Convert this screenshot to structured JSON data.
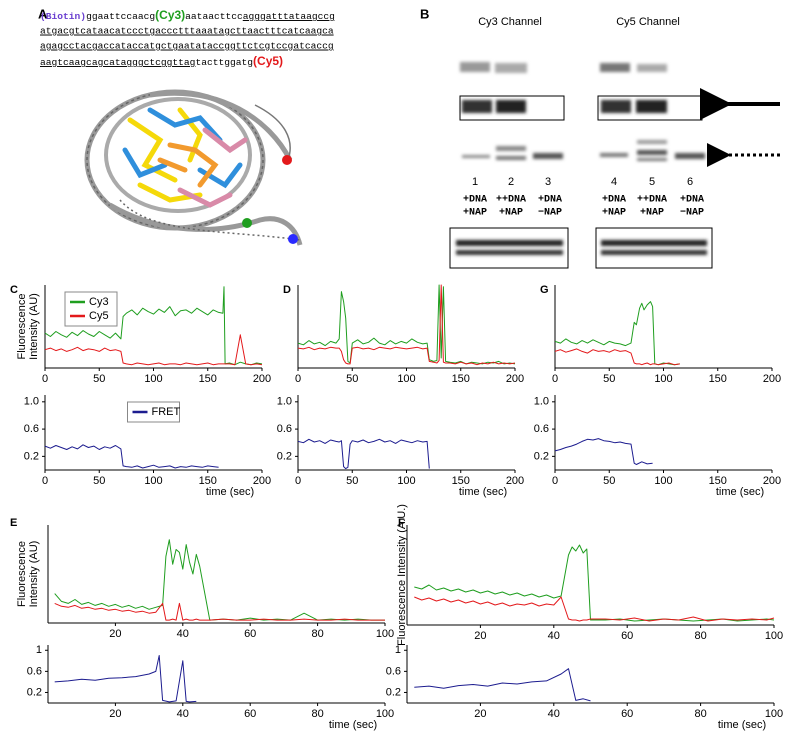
{
  "labels": [
    "A",
    "B"
  ],
  "sequence": {
    "lines": [
      [
        "(Biotin)",
        "ggaattccaacg",
        "(Cy3)",
        "aataacttcc",
        "agggatttataagccg"
      ],
      [
        "atgacgtcataacatccctgaccctttaaatagcttaactttcatcaagca"
      ],
      [
        "agagcctacgaccataccatgctgaatataccggttctcgtccgatcaccg"
      ],
      [
        "aagtcaagcagcatagggctcggttag",
        "tacttggatg",
        "(Cy5)"
      ]
    ]
  },
  "gel": {
    "channels": [
      "Cy3 Channel",
      "Cy5 Channel"
    ],
    "lanes": [
      {
        "number": 1,
        "conditions": [
          "+DNA",
          "+NAP"
        ]
      },
      {
        "number": 2,
        "conditions": [
          "++DNA",
          "+NAP"
        ]
      },
      {
        "number": 3,
        "conditions": [
          "+DNA",
          "−NAP"
        ]
      },
      {
        "number": 4,
        "conditions": [
          "+DNA",
          "+NAP"
        ]
      },
      {
        "number": 5,
        "conditions": [
          "++DNA",
          "+NAP"
        ]
      },
      {
        "number": 6,
        "conditions": [
          "+DNA",
          "−NAP"
        ]
      }
    ]
  },
  "chart_data": [
    {
      "type": "line",
      "label": "C",
      "ylabel_lines": [
        "Fluorescence",
        "Intensity (AU)"
      ],
      "legend": "upper left",
      "x": [
        0,
        5,
        10,
        15,
        20,
        25,
        30,
        35,
        40,
        45,
        50,
        55,
        60,
        65,
        70,
        72,
        75,
        80,
        85,
        90,
        95,
        100,
        105,
        110,
        115,
        120,
        125,
        130,
        135,
        140,
        145,
        150,
        155,
        160,
        164,
        165,
        166,
        170,
        175,
        180,
        185,
        190,
        195,
        200
      ],
      "xlim": [
        0,
        200
      ],
      "xticks": [
        0,
        50,
        100,
        150,
        200
      ],
      "ylim": [
        0,
        100
      ],
      "series": [
        {
          "name": "Cy3",
          "color": "#1f9e1f",
          "values": [
            42,
            38,
            44,
            40,
            37,
            43,
            39,
            45,
            41,
            38,
            44,
            40,
            36,
            42,
            35,
            62,
            66,
            70,
            64,
            72,
            68,
            65,
            71,
            67,
            74,
            63,
            69,
            70,
            66,
            72,
            68,
            64,
            70,
            67,
            66,
            98,
            5,
            6,
            4,
            7,
            5,
            4,
            6,
            5
          ]
        },
        {
          "name": "Cy5",
          "color": "#e3191b",
          "values": [
            22,
            24,
            21,
            23,
            20,
            22,
            25,
            21,
            23,
            22,
            20,
            24,
            21,
            22,
            20,
            6,
            5,
            4,
            6,
            5,
            4,
            5,
            6,
            4,
            5,
            5,
            4,
            6,
            5,
            4,
            5,
            6,
            4,
            5,
            5,
            5,
            5,
            5,
            4,
            40,
            5,
            4,
            5,
            4
          ]
        }
      ]
    },
    {
      "type": "line",
      "legend": "upper center",
      "xlabel": "time (sec)",
      "x": [
        0,
        5,
        10,
        15,
        20,
        25,
        30,
        35,
        40,
        45,
        50,
        55,
        60,
        65,
        70,
        72,
        75,
        80,
        85,
        90,
        95,
        100,
        105,
        110,
        115,
        120,
        125,
        130,
        135,
        140,
        145,
        150,
        155,
        160
      ],
      "xlim": [
        0,
        200
      ],
      "xticks": [
        0,
        50,
        100,
        150,
        200
      ],
      "ylim": [
        0,
        1.1
      ],
      "yticks": [
        0.2,
        0.6,
        {
          "value": 1,
          "label": "1.0"
        }
      ],
      "series": [
        {
          "name": "FRET",
          "color": "#1c1c8f",
          "values": [
            0.35,
            0.32,
            0.36,
            0.33,
            0.3,
            0.34,
            0.31,
            0.37,
            0.33,
            0.35,
            0.3,
            0.34,
            0.32,
            0.36,
            0.31,
            0.06,
            0.05,
            0.04,
            0.06,
            0.03,
            0.05,
            0.07,
            0.04,
            0.05,
            0.06,
            0.03,
            0.05,
            0.04,
            0.06,
            0.05,
            0.04,
            0.06,
            0.05,
            0.04
          ]
        }
      ]
    },
    {
      "type": "line",
      "label": "D",
      "x": [
        0,
        5,
        10,
        15,
        20,
        25,
        30,
        35,
        38,
        40,
        42,
        44,
        46,
        48,
        50,
        55,
        60,
        65,
        70,
        75,
        80,
        85,
        90,
        95,
        100,
        105,
        110,
        115,
        119,
        121,
        125,
        128,
        130,
        132,
        134,
        136,
        140,
        145,
        150,
        155,
        160,
        165,
        170,
        175,
        180,
        185,
        190,
        195,
        200
      ],
      "xlim": [
        0,
        200
      ],
      "xticks": [
        0,
        50,
        100,
        150,
        200
      ],
      "ylim": [
        0,
        100
      ],
      "series": [
        {
          "color": "#1f9e1f",
          "values": [
            30,
            28,
            33,
            29,
            31,
            27,
            32,
            30,
            35,
            92,
            80,
            60,
            8,
            6,
            30,
            34,
            29,
            31,
            36,
            30,
            28,
            33,
            29,
            32,
            30,
            35,
            31,
            29,
            30,
            10,
            8,
            9,
            100,
            12,
            98,
            8,
            7,
            6,
            8,
            5,
            7,
            6,
            5,
            7,
            6,
            8,
            5,
            6,
            5
          ]
        },
        {
          "color": "#e3191b",
          "values": [
            24,
            23,
            25,
            22,
            24,
            23,
            25,
            24,
            24,
            20,
            10,
            6,
            5,
            5,
            24,
            25,
            23,
            24,
            22,
            25,
            24,
            23,
            25,
            24,
            23,
            24,
            25,
            23,
            24,
            8,
            7,
            6,
            9,
            100,
            7,
            6,
            6,
            5,
            7,
            5,
            6,
            4,
            6,
            5,
            7,
            5,
            6,
            5,
            6
          ]
        }
      ]
    },
    {
      "type": "line",
      "xlabel": "time (sec)",
      "x": [
        0,
        5,
        10,
        15,
        20,
        25,
        30,
        35,
        38,
        40,
        42,
        44,
        46,
        48,
        50,
        55,
        60,
        65,
        70,
        75,
        80,
        85,
        90,
        95,
        100,
        105,
        110,
        115,
        119,
        121
      ],
      "xlim": [
        0,
        200
      ],
      "xticks": [
        0,
        50,
        100,
        150,
        200
      ],
      "ylim": [
        0,
        1.1
      ],
      "yticks": [
        0.2,
        0.6,
        {
          "value": 1,
          "label": "1.0"
        }
      ],
      "series": [
        {
          "color": "#1c1c8f",
          "values": [
            0.42,
            0.4,
            0.45,
            0.41,
            0.43,
            0.39,
            0.44,
            0.42,
            0.41,
            0.43,
            0.05,
            0.02,
            0.04,
            0.38,
            0.43,
            0.41,
            0.44,
            0.4,
            0.42,
            0.45,
            0.41,
            0.43,
            0.39,
            0.44,
            0.42,
            0.4,
            0.43,
            0.41,
            0.42,
            0.02
          ]
        }
      ]
    },
    {
      "type": "line",
      "label": "G",
      "x": [
        0,
        5,
        10,
        15,
        20,
        25,
        30,
        35,
        40,
        45,
        50,
        55,
        60,
        65,
        70,
        73,
        75,
        78,
        80,
        82,
        85,
        88,
        90,
        92,
        95,
        100,
        105,
        110,
        115
      ],
      "xlim": [
        0,
        200
      ],
      "xticks": [
        0,
        50,
        100,
        150,
        200
      ],
      "ylim": [
        0,
        100
      ],
      "series": [
        {
          "color": "#1f9e1f",
          "values": [
            32,
            30,
            35,
            31,
            29,
            33,
            30,
            34,
            31,
            28,
            32,
            30,
            29,
            27,
            30,
            55,
            52,
            72,
            78,
            70,
            76,
            80,
            74,
            5,
            4,
            6,
            5,
            4,
            5
          ]
        },
        {
          "color": "#e3191b",
          "values": [
            20,
            22,
            19,
            21,
            23,
            20,
            18,
            22,
            20,
            21,
            19,
            22,
            20,
            21,
            18,
            6,
            5,
            5,
            4,
            5,
            6,
            4,
            5,
            5,
            4,
            5,
            6,
            4,
            5
          ]
        }
      ]
    },
    {
      "type": "line",
      "xlabel": "time (sec)",
      "x": [
        0,
        5,
        10,
        15,
        20,
        25,
        30,
        35,
        40,
        45,
        50,
        55,
        60,
        65,
        70,
        73,
        75,
        80,
        85,
        90
      ],
      "xlim": [
        0,
        200
      ],
      "xticks": [
        0,
        50,
        100,
        150,
        200
      ],
      "ylim": [
        0,
        1.1
      ],
      "yticks": [
        0.2,
        0.6,
        {
          "value": 1,
          "label": "1.0"
        }
      ],
      "series": [
        {
          "color": "#1c1c8f",
          "values": [
            0.28,
            0.3,
            0.33,
            0.35,
            0.38,
            0.42,
            0.45,
            0.44,
            0.46,
            0.43,
            0.42,
            0.4,
            0.41,
            0.39,
            0.38,
            0.1,
            0.08,
            0.12,
            0.09,
            0.1
          ]
        }
      ]
    },
    {
      "type": "line",
      "label": "E",
      "ylabel_lines": [
        "Fluorescence",
        "Intensity (AU)"
      ],
      "x": [
        2,
        4,
        6,
        8,
        10,
        12,
        14,
        16,
        18,
        20,
        22,
        24,
        26,
        28,
        30,
        32,
        34,
        35,
        36,
        37,
        38,
        39,
        40,
        41,
        42,
        43,
        44,
        45,
        48,
        52,
        56,
        60,
        64,
        68,
        72,
        76,
        80,
        84,
        88,
        92,
        96,
        100
      ],
      "xlim": [
        0,
        100
      ],
      "xticks": [
        20,
        40,
        60,
        80,
        100
      ],
      "ylim": [
        0,
        100
      ],
      "series": [
        {
          "color": "#1f9e1f",
          "values": [
            30,
            22,
            20,
            24,
            19,
            21,
            18,
            20,
            17,
            19,
            16,
            18,
            15,
            17,
            14,
            16,
            18,
            68,
            85,
            60,
            75,
            72,
            55,
            80,
            62,
            50,
            70,
            58,
            3,
            4,
            3,
            5,
            3,
            4,
            3,
            10,
            3,
            4,
            3,
            4,
            3,
            3
          ]
        },
        {
          "color": "#e3191b",
          "values": [
            20,
            17,
            16,
            18,
            15,
            16,
            14,
            15,
            13,
            14,
            12,
            13,
            11,
            12,
            10,
            11,
            20,
            3,
            3,
            4,
            3,
            20,
            3,
            4,
            3,
            3,
            4,
            3,
            3,
            4,
            3,
            3,
            4,
            3,
            3,
            4,
            3,
            3,
            4,
            3,
            3,
            3
          ]
        }
      ]
    },
    {
      "type": "line",
      "xlabel": "time (sec)",
      "x": [
        2,
        6,
        10,
        14,
        18,
        22,
        26,
        30,
        32,
        33,
        34,
        36,
        38,
        40,
        41,
        42,
        44
      ],
      "xlim": [
        0,
        100
      ],
      "xticks": [
        20,
        40,
        60,
        80,
        100
      ],
      "ylim": [
        0,
        1.1
      ],
      "yticks": [
        0.2,
        0.6,
        1
      ],
      "series": [
        {
          "color": "#1c1c8f",
          "values": [
            0.4,
            0.42,
            0.45,
            0.43,
            0.47,
            0.48,
            0.5,
            0.55,
            0.6,
            0.9,
            0.05,
            0.02,
            0.04,
            0.8,
            0.03,
            0.02,
            0.03
          ]
        }
      ]
    },
    {
      "type": "line",
      "label": "F",
      "ylabel": "Fluorescence Intensity (A.U.)",
      "x": [
        2,
        4,
        6,
        8,
        10,
        12,
        14,
        16,
        18,
        20,
        22,
        24,
        26,
        28,
        30,
        32,
        34,
        36,
        38,
        40,
        42,
        44,
        45,
        46,
        47,
        48,
        49,
        50,
        54,
        58,
        62,
        66,
        70,
        74,
        78,
        82,
        86,
        90,
        94,
        98,
        100
      ],
      "xlim": [
        0,
        100
      ],
      "xticks": [
        20,
        40,
        60,
        80,
        100
      ],
      "ylim": [
        0,
        100
      ],
      "series": [
        {
          "color": "#1f9e1f",
          "values": [
            38,
            36,
            40,
            35,
            37,
            34,
            36,
            33,
            35,
            32,
            34,
            31,
            33,
            30,
            32,
            29,
            31,
            28,
            30,
            27,
            29,
            70,
            78,
            74,
            80,
            72,
            76,
            5,
            5,
            6,
            4,
            5,
            6,
            5,
            4,
            5,
            6,
            4,
            5,
            6,
            5
          ]
        },
        {
          "color": "#e3191b",
          "values": [
            28,
            25,
            27,
            24,
            26,
            23,
            25,
            22,
            24,
            21,
            23,
            20,
            22,
            19,
            21,
            20,
            22,
            19,
            21,
            20,
            28,
            6,
            5,
            5,
            4,
            5,
            5,
            6,
            6,
            5,
            7,
            4,
            6,
            5,
            8,
            4,
            6,
            5,
            6,
            5,
            7
          ]
        }
      ]
    },
    {
      "type": "line",
      "xlabel": "time (sec)",
      "x": [
        2,
        6,
        10,
        14,
        18,
        22,
        26,
        30,
        34,
        38,
        42,
        44,
        46,
        48,
        50
      ],
      "xlim": [
        0,
        100
      ],
      "xticks": [
        20,
        40,
        60,
        80,
        100
      ],
      "ylim": [
        0,
        1.1
      ],
      "yticks": [
        0.2,
        0.6,
        1
      ],
      "series": [
        {
          "color": "#1c1c8f",
          "values": [
            0.3,
            0.32,
            0.28,
            0.33,
            0.35,
            0.32,
            0.38,
            0.36,
            0.4,
            0.42,
            0.55,
            0.65,
            0.05,
            0.08,
            0.04
          ]
        }
      ]
    }
  ]
}
